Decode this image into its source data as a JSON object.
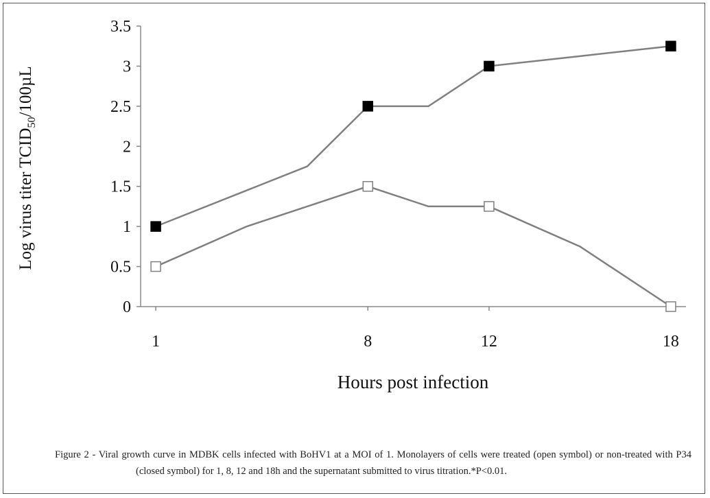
{
  "chart_data": {
    "type": "line",
    "ylabel_parts": [
      "Log virus titer TCID",
      "50",
      "/100µL"
    ],
    "xlabel": "Hours post infection",
    "caption": "Figure 2 - Viral growth curve in MDBK cells infected with BoHV1 at a MOI of 1. Monolayers of cells were treated (open symbol) or non-treated with P34 (closed symbol) for 1, 8, 12 and 18h and the supernatant submitted to virus titration.*P<0.01.",
    "x": [
      1,
      4,
      6,
      8,
      10,
      12,
      15,
      18
    ],
    "series": [
      {
        "color": "#808080",
        "marker_fill": "#000000",
        "values": [
          1,
          1.45,
          1.75,
          2.5,
          2.5,
          3,
          3.125,
          3.25
        ]
      },
      {
        "color": "#808080",
        "marker_fill": "#ffffff",
        "values": [
          0.5,
          1,
          1.25,
          1.5,
          1.25,
          1.25,
          0.75,
          0
        ]
      }
    ],
    "xlim": [
      0.5,
      18.5
    ],
    "xticks": [
      1,
      8,
      12,
      18
    ],
    "ylim": [
      0,
      3.5
    ],
    "yticks": [
      0,
      0.5,
      1,
      1.5,
      2,
      2.5,
      3,
      3.5
    ]
  }
}
